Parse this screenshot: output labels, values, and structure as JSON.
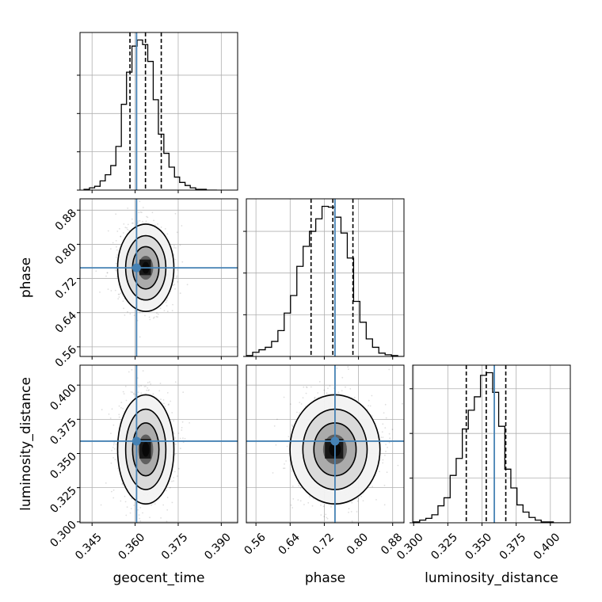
{
  "chart_data": {
    "type": "corner",
    "parameters": [
      "geocent_time",
      "phase",
      "luminosity_distance"
    ],
    "truths": [
      0.3605,
      0.745,
      0.359
    ],
    "colors": {
      "truth": "#4682b4",
      "hist": "#000000",
      "grid": "#b0b0b0"
    },
    "grid": true,
    "axes": {
      "geocent_time": {
        "range": [
          0.3408,
          0.3957
        ],
        "ticks": [
          "0.345",
          "0.360",
          "0.375",
          "0.390"
        ],
        "tick_values": [
          0.345,
          0.36,
          0.375,
          0.39
        ]
      },
      "phase": {
        "range": [
          0.5375,
          0.9065
        ],
        "ticks": [
          "0.56",
          "0.64",
          "0.72",
          "0.80",
          "0.88"
        ],
        "tick_values": [
          0.56,
          0.64,
          0.72,
          0.8,
          0.88
        ]
      },
      "luminosity_distance": {
        "range": [
          0.2993,
          0.4146
        ],
        "ticks": [
          "0.300",
          "0.325",
          "0.350",
          "0.375",
          "0.400"
        ],
        "tick_values": [
          0.3,
          0.325,
          0.35,
          0.375,
          0.4
        ]
      }
    },
    "histograms": [
      {
        "parameter": "geocent_time",
        "bin_edges": [
          0.3422,
          0.3441,
          0.3459,
          0.3478,
          0.3496,
          0.3515,
          0.3533,
          0.3552,
          0.357,
          0.3589,
          0.3607,
          0.3626,
          0.3644,
          0.3663,
          0.3681,
          0.37,
          0.3718,
          0.3737,
          0.3755,
          0.3774,
          0.3792,
          0.3811,
          0.3829,
          0.3848,
          0.3866,
          0.3885
        ],
        "counts": [
          1,
          3,
          5,
          12,
          20,
          32,
          57,
          112,
          154,
          188,
          196,
          190,
          168,
          118,
          73,
          48,
          30,
          17,
          10,
          6,
          3,
          1,
          1,
          0,
          0
        ],
        "quantiles": [
          0.3582,
          0.3636,
          0.3691
        ]
      },
      {
        "parameter": "phase",
        "bin_edges": [
          0.5375,
          0.5523,
          0.5671,
          0.5818,
          0.5966,
          0.6114,
          0.6261,
          0.6409,
          0.6557,
          0.6704,
          0.6852,
          0.7,
          0.7147,
          0.7295,
          0.7443,
          0.759,
          0.7738,
          0.7886,
          0.8033,
          0.8181,
          0.8329,
          0.8476,
          0.8624,
          0.8772,
          0.8919,
          0.9065
        ],
        "counts": [
          1,
          5,
          8,
          11,
          18,
          31,
          52,
          73,
          108,
          132,
          150,
          165,
          180,
          179,
          167,
          148,
          118,
          66,
          41,
          21,
          11,
          4,
          2,
          1,
          0
        ],
        "quantiles": [
          0.689,
          0.74,
          0.787
        ]
      },
      {
        "parameter": "luminosity_distance",
        "bin_edges": [
          0.3,
          0.3044,
          0.3089,
          0.3133,
          0.3178,
          0.3222,
          0.3267,
          0.3311,
          0.3356,
          0.34,
          0.3444,
          0.3489,
          0.3533,
          0.3578,
          0.3622,
          0.3667,
          0.3711,
          0.3756,
          0.38,
          0.3844,
          0.3889,
          0.3933,
          0.3978,
          0.4022,
          0.4067,
          0.4146
        ],
        "counts": [
          1,
          3,
          5,
          9,
          19,
          28,
          53,
          72,
          105,
          126,
          141,
          165,
          168,
          146,
          108,
          60,
          39,
          20,
          12,
          6,
          3,
          1,
          1,
          0,
          0
        ],
        "quantiles": [
          0.3385,
          0.3531,
          0.3674
        ]
      }
    ],
    "density_panels": [
      {
        "x": "geocent_time",
        "y": "phase",
        "center": [
          0.3637,
          0.745
        ],
        "sigma": [
          0.004,
          0.043
        ]
      },
      {
        "x": "geocent_time",
        "y": "luminosity_distance",
        "center": [
          0.3637,
          0.353
        ],
        "sigma": [
          0.004,
          0.0168
        ]
      },
      {
        "x": "phase",
        "y": "luminosity_distance",
        "center": [
          0.745,
          0.353
        ],
        "sigma": [
          0.043,
          0.0168
        ]
      }
    ]
  }
}
